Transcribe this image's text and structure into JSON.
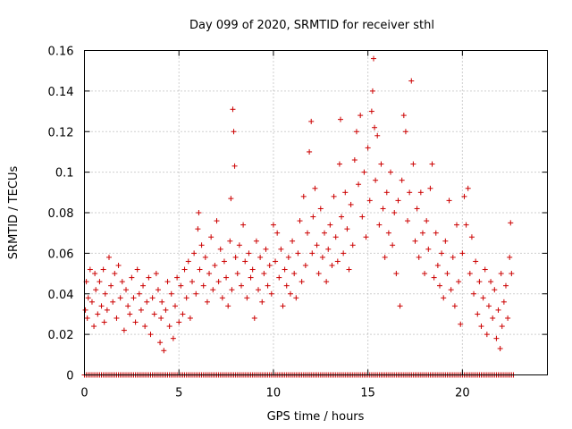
{
  "chart_data": {
    "type": "scatter",
    "title": "Day 099 of 2020, SRMTID for receiver sthl",
    "xlabel": "GPS time / hours",
    "ylabel": "SRMTID / TECUs",
    "xlim": [
      0,
      24.5
    ],
    "ylim": [
      0,
      0.16
    ],
    "xticks": [
      0,
      5,
      10,
      15,
      20
    ],
    "xtick_labels": [
      "0",
      "5",
      "10",
      "15",
      "20"
    ],
    "yticks": [
      0,
      0.02,
      0.04,
      0.06,
      0.08,
      0.1,
      0.12,
      0.14,
      0.16
    ],
    "ytick_labels": [
      "0",
      "0.02",
      "0.04",
      "0.06",
      "0.08",
      "0.1",
      "0.12",
      "0.14",
      "0.16"
    ],
    "grid": true,
    "marker": "plus",
    "color": "#cc0000",
    "series": [
      {
        "name": "SRMTID",
        "points": [
          [
            0.05,
            0.032
          ],
          [
            0.1,
            0.046
          ],
          [
            0.15,
            0.028
          ],
          [
            0.2,
            0.038
          ],
          [
            0.3,
            0.052
          ],
          [
            0.4,
            0.036
          ],
          [
            0.5,
            0.024
          ],
          [
            0.55,
            0.05
          ],
          [
            0.6,
            0.042
          ],
          [
            0.7,
            0.03
          ],
          [
            0.8,
            0.046
          ],
          [
            0.9,
            0.034
          ],
          [
            1.0,
            0.052
          ],
          [
            1.05,
            0.026
          ],
          [
            1.1,
            0.04
          ],
          [
            1.2,
            0.032
          ],
          [
            1.3,
            0.058
          ],
          [
            1.4,
            0.044
          ],
          [
            1.5,
            0.036
          ],
          [
            1.6,
            0.05
          ],
          [
            1.7,
            0.028
          ],
          [
            1.8,
            0.054
          ],
          [
            1.9,
            0.038
          ],
          [
            2.0,
            0.046
          ],
          [
            2.1,
            0.022
          ],
          [
            2.2,
            0.042
          ],
          [
            2.3,
            0.034
          ],
          [
            2.4,
            0.03
          ],
          [
            2.5,
            0.048
          ],
          [
            2.6,
            0.038
          ],
          [
            2.7,
            0.026
          ],
          [
            2.8,
            0.052
          ],
          [
            2.9,
            0.04
          ],
          [
            3.0,
            0.032
          ],
          [
            3.1,
            0.044
          ],
          [
            3.2,
            0.024
          ],
          [
            3.3,
            0.036
          ],
          [
            3.4,
            0.048
          ],
          [
            3.5,
            0.02
          ],
          [
            3.6,
            0.038
          ],
          [
            3.7,
            0.03
          ],
          [
            3.8,
            0.05
          ],
          [
            3.9,
            0.042
          ],
          [
            4.0,
            0.016
          ],
          [
            4.05,
            0.028
          ],
          [
            4.1,
            0.036
          ],
          [
            4.2,
            0.012
          ],
          [
            4.3,
            0.032
          ],
          [
            4.4,
            0.046
          ],
          [
            4.5,
            0.024
          ],
          [
            4.6,
            0.04
          ],
          [
            4.7,
            0.018
          ],
          [
            4.8,
            0.034
          ],
          [
            4.9,
            0.048
          ],
          [
            5.0,
            0.026
          ],
          [
            5.1,
            0.044
          ],
          [
            5.2,
            0.03
          ],
          [
            5.3,
            0.052
          ],
          [
            5.4,
            0.038
          ],
          [
            5.5,
            0.056
          ],
          [
            5.6,
            0.028
          ],
          [
            5.7,
            0.046
          ],
          [
            5.8,
            0.06
          ],
          [
            5.9,
            0.04
          ],
          [
            6.0,
            0.072
          ],
          [
            6.05,
            0.08
          ],
          [
            6.1,
            0.052
          ],
          [
            6.2,
            0.064
          ],
          [
            6.3,
            0.044
          ],
          [
            6.4,
            0.058
          ],
          [
            6.5,
            0.036
          ],
          [
            6.6,
            0.05
          ],
          [
            6.7,
            0.068
          ],
          [
            6.8,
            0.042
          ],
          [
            6.9,
            0.054
          ],
          [
            7.0,
            0.076
          ],
          [
            7.1,
            0.046
          ],
          [
            7.2,
            0.062
          ],
          [
            7.3,
            0.038
          ],
          [
            7.4,
            0.056
          ],
          [
            7.5,
            0.048
          ],
          [
            7.6,
            0.034
          ],
          [
            7.7,
            0.066
          ],
          [
            7.75,
            0.087
          ],
          [
            7.8,
            0.042
          ],
          [
            7.85,
            0.131
          ],
          [
            7.9,
            0.12
          ],
          [
            7.95,
            0.103
          ],
          [
            8.0,
            0.058
          ],
          [
            8.1,
            0.05
          ],
          [
            8.2,
            0.064
          ],
          [
            8.3,
            0.044
          ],
          [
            8.4,
            0.074
          ],
          [
            8.5,
            0.056
          ],
          [
            8.6,
            0.038
          ],
          [
            8.7,
            0.06
          ],
          [
            8.8,
            0.048
          ],
          [
            8.9,
            0.052
          ],
          [
            9.0,
            0.028
          ],
          [
            9.1,
            0.066
          ],
          [
            9.2,
            0.042
          ],
          [
            9.3,
            0.058
          ],
          [
            9.4,
            0.036
          ],
          [
            9.5,
            0.05
          ],
          [
            9.6,
            0.062
          ],
          [
            9.7,
            0.044
          ],
          [
            9.8,
            0.054
          ],
          [
            9.9,
            0.04
          ],
          [
            10.0,
            0.074
          ],
          [
            10.1,
            0.056
          ],
          [
            10.2,
            0.07
          ],
          [
            10.3,
            0.048
          ],
          [
            10.4,
            0.062
          ],
          [
            10.5,
            0.034
          ],
          [
            10.6,
            0.052
          ],
          [
            10.7,
            0.044
          ],
          [
            10.8,
            0.058
          ],
          [
            10.9,
            0.04
          ],
          [
            11.0,
            0.066
          ],
          [
            11.1,
            0.05
          ],
          [
            11.2,
            0.038
          ],
          [
            11.3,
            0.06
          ],
          [
            11.4,
            0.076
          ],
          [
            11.5,
            0.046
          ],
          [
            11.6,
            0.088
          ],
          [
            11.7,
            0.054
          ],
          [
            11.8,
            0.07
          ],
          [
            11.9,
            0.11
          ],
          [
            12.0,
            0.125
          ],
          [
            12.05,
            0.06
          ],
          [
            12.1,
            0.078
          ],
          [
            12.2,
            0.092
          ],
          [
            12.3,
            0.064
          ],
          [
            12.4,
            0.05
          ],
          [
            12.5,
            0.082
          ],
          [
            12.6,
            0.058
          ],
          [
            12.7,
            0.07
          ],
          [
            12.8,
            0.046
          ],
          [
            12.9,
            0.062
          ],
          [
            13.0,
            0.074
          ],
          [
            13.1,
            0.054
          ],
          [
            13.2,
            0.088
          ],
          [
            13.3,
            0.068
          ],
          [
            13.4,
            0.056
          ],
          [
            13.5,
            0.104
          ],
          [
            13.55,
            0.126
          ],
          [
            13.6,
            0.078
          ],
          [
            13.7,
            0.06
          ],
          [
            13.8,
            0.09
          ],
          [
            13.9,
            0.072
          ],
          [
            14.0,
            0.052
          ],
          [
            14.1,
            0.084
          ],
          [
            14.2,
            0.064
          ],
          [
            14.3,
            0.106
          ],
          [
            14.4,
            0.12
          ],
          [
            14.5,
            0.094
          ],
          [
            14.6,
            0.128
          ],
          [
            14.7,
            0.078
          ],
          [
            14.8,
            0.1
          ],
          [
            14.9,
            0.068
          ],
          [
            15.0,
            0.112
          ],
          [
            15.1,
            0.086
          ],
          [
            15.2,
            0.13
          ],
          [
            15.25,
            0.14
          ],
          [
            15.3,
            0.156
          ],
          [
            15.35,
            0.122
          ],
          [
            15.4,
            0.096
          ],
          [
            15.5,
            0.118
          ],
          [
            15.6,
            0.074
          ],
          [
            15.7,
            0.104
          ],
          [
            15.8,
            0.082
          ],
          [
            15.9,
            0.058
          ],
          [
            16.0,
            0.09
          ],
          [
            16.1,
            0.07
          ],
          [
            16.2,
            0.1
          ],
          [
            16.3,
            0.064
          ],
          [
            16.4,
            0.08
          ],
          [
            16.5,
            0.05
          ],
          [
            16.6,
            0.086
          ],
          [
            16.7,
            0.034
          ],
          [
            16.8,
            0.096
          ],
          [
            16.9,
            0.128
          ],
          [
            17.0,
            0.12
          ],
          [
            17.1,
            0.076
          ],
          [
            17.2,
            0.09
          ],
          [
            17.3,
            0.145
          ],
          [
            17.4,
            0.104
          ],
          [
            17.5,
            0.066
          ],
          [
            17.6,
            0.082
          ],
          [
            17.7,
            0.058
          ],
          [
            17.8,
            0.09
          ],
          [
            17.9,
            0.07
          ],
          [
            18.0,
            0.05
          ],
          [
            18.1,
            0.076
          ],
          [
            18.2,
            0.062
          ],
          [
            18.3,
            0.092
          ],
          [
            18.4,
            0.104
          ],
          [
            18.5,
            0.048
          ],
          [
            18.6,
            0.07
          ],
          [
            18.7,
            0.054
          ],
          [
            18.8,
            0.044
          ],
          [
            18.9,
            0.06
          ],
          [
            19.0,
            0.038
          ],
          [
            19.1,
            0.066
          ],
          [
            19.2,
            0.05
          ],
          [
            19.3,
            0.086
          ],
          [
            19.4,
            0.042
          ],
          [
            19.5,
            0.058
          ],
          [
            19.6,
            0.034
          ],
          [
            19.7,
            0.074
          ],
          [
            19.8,
            0.046
          ],
          [
            19.9,
            0.025
          ],
          [
            20.0,
            0.06
          ],
          [
            20.1,
            0.088
          ],
          [
            20.2,
            0.074
          ],
          [
            20.3,
            0.092
          ],
          [
            20.4,
            0.05
          ],
          [
            20.5,
            0.068
          ],
          [
            20.6,
            0.04
          ],
          [
            20.7,
            0.056
          ],
          [
            20.8,
            0.03
          ],
          [
            20.9,
            0.046
          ],
          [
            21.0,
            0.024
          ],
          [
            21.1,
            0.038
          ],
          [
            21.2,
            0.052
          ],
          [
            21.3,
            0.02
          ],
          [
            21.4,
            0.034
          ],
          [
            21.5,
            0.046
          ],
          [
            21.6,
            0.028
          ],
          [
            21.7,
            0.042
          ],
          [
            21.8,
            0.018
          ],
          [
            21.9,
            0.032
          ],
          [
            22.0,
            0.013
          ],
          [
            22.05,
            0.05
          ],
          [
            22.1,
            0.024
          ],
          [
            22.2,
            0.036
          ],
          [
            22.3,
            0.044
          ],
          [
            22.4,
            0.028
          ],
          [
            22.5,
            0.058
          ],
          [
            22.55,
            0.075
          ],
          [
            22.6,
            0.05
          ]
        ]
      },
      {
        "name": "zero-level",
        "x_range": [
          0,
          22.7
        ],
        "x_step": 0.1,
        "y": 0
      }
    ]
  }
}
